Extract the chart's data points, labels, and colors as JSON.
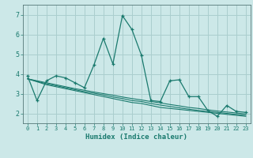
{
  "xlabel": "Humidex (Indice chaleur)",
  "bg_color": "#cce8e8",
  "grid_color": "#aacece",
  "line_color": "#1a7a6e",
  "x_values": [
    0,
    1,
    2,
    3,
    4,
    5,
    6,
    7,
    8,
    9,
    10,
    11,
    12,
    13,
    14,
    15,
    16,
    17,
    18,
    19,
    20,
    21,
    22,
    23
  ],
  "main_line": [
    3.9,
    2.65,
    3.65,
    3.9,
    3.8,
    3.55,
    3.3,
    4.45,
    5.8,
    4.5,
    6.95,
    6.25,
    4.95,
    2.65,
    2.6,
    3.65,
    3.7,
    2.85,
    2.85,
    2.15,
    1.85,
    2.4,
    2.1,
    2.05
  ],
  "trend_lines": [
    [
      3.75,
      3.6,
      3.45,
      3.35,
      3.25,
      3.15,
      3.05,
      2.95,
      2.85,
      2.75,
      2.65,
      2.55,
      2.5,
      2.4,
      2.3,
      2.25,
      2.2,
      2.15,
      2.1,
      2.05,
      2.0,
      1.95,
      1.9,
      1.85
    ],
    [
      3.75,
      3.62,
      3.5,
      3.4,
      3.3,
      3.2,
      3.1,
      3.02,
      2.93,
      2.83,
      2.75,
      2.65,
      2.6,
      2.5,
      2.42,
      2.35,
      2.28,
      2.21,
      2.15,
      2.1,
      2.05,
      2.0,
      1.95,
      1.9
    ],
    [
      3.75,
      3.65,
      3.55,
      3.45,
      3.35,
      3.25,
      3.17,
      3.08,
      3.0,
      2.92,
      2.83,
      2.75,
      2.68,
      2.6,
      2.53,
      2.45,
      2.38,
      2.3,
      2.25,
      2.18,
      2.12,
      2.07,
      2.02,
      1.97
    ]
  ],
  "ylim": [
    1.5,
    7.5
  ],
  "xlim": [
    -0.5,
    23.5
  ],
  "yticks": [
    2,
    3,
    4,
    5,
    6,
    7
  ],
  "xticks": [
    0,
    1,
    2,
    3,
    4,
    5,
    6,
    7,
    8,
    9,
    10,
    11,
    12,
    13,
    14,
    15,
    16,
    17,
    18,
    19,
    20,
    21,
    22,
    23
  ]
}
